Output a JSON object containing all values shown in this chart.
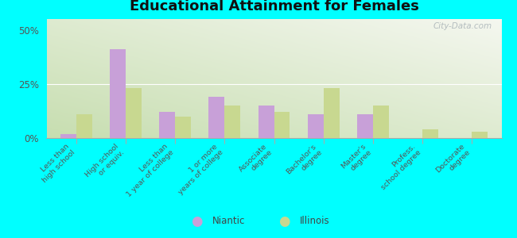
{
  "title": "Educational Attainment for Females",
  "categories": [
    "Less than\nhigh school",
    "High school\nor equiv.",
    "Less than\n1 year of college",
    "1 or more\nyears of college",
    "Associate\ndegree",
    "Bachelor's\ndegree",
    "Master's\ndegree",
    "Profess.\nschool degree",
    "Doctorate\ndegree"
  ],
  "niantic": [
    2,
    41,
    12,
    19,
    15,
    11,
    11,
    0,
    0
  ],
  "illinois": [
    11,
    23,
    10,
    15,
    12,
    23,
    15,
    4,
    3
  ],
  "niantic_color": "#c8a0d8",
  "illinois_color": "#c8d890",
  "background_color": "#00ffff",
  "yticks": [
    0,
    25,
    50
  ],
  "ylim": [
    0,
    55
  ],
  "watermark": "City-Data.com"
}
